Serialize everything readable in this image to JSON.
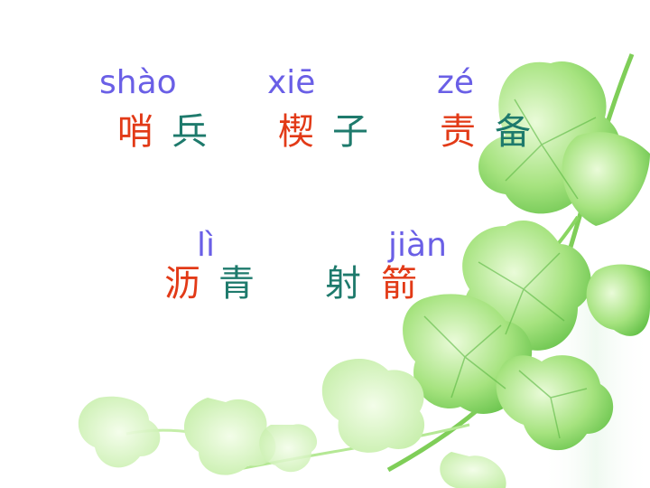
{
  "colors": {
    "pinyin": "#6a5fe6",
    "accent_char": "#e23a17",
    "normal_char": "#1e7a6c",
    "leaf_light": "#c9f2a8",
    "leaf_mid": "#8fdc6a",
    "leaf_dark": "#5fbf4a"
  },
  "pairs": [
    {
      "pinyin": "shào",
      "char_accent": "哨",
      "char_other": "兵"
    },
    {
      "pinyin": "xiē",
      "char_accent": "楔",
      "char_other": "子"
    },
    {
      "pinyin": "zé",
      "char_accent": "责",
      "char_other": "备"
    },
    {
      "pinyin": "lì",
      "char_accent": "沥",
      "char_other": "青"
    },
    {
      "pinyin": "jiàn",
      "char_accent": "箭",
      "char_other": "射"
    }
  ]
}
